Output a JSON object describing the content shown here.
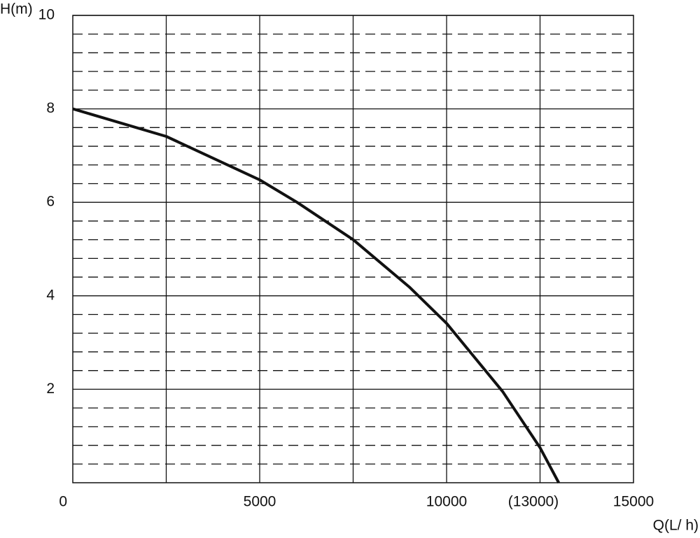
{
  "chart_data": {
    "type": "line",
    "ylabel": "H(m)",
    "xlabel": "Q(L/ h)",
    "xlim": [
      0,
      15000
    ],
    "ylim": [
      0,
      10
    ],
    "xticks": [
      0,
      5000,
      10000,
      {
        "value": 13000,
        "label": "(13000)"
      },
      15000
    ],
    "yticks": [
      2,
      4,
      6,
      8,
      10
    ],
    "xgrid": [
      2500,
      5000,
      7500,
      10000,
      12500
    ],
    "yminor": [
      0.4,
      0.8,
      1.2,
      1.6,
      2.4,
      2.8,
      3.2,
      3.6,
      4.4,
      4.8,
      5.2,
      5.6,
      6.4,
      6.8,
      7.2,
      7.6,
      8.4,
      8.8,
      9.2,
      9.6
    ],
    "grid": true,
    "series": [
      {
        "color": "#111111",
        "x": [
          0,
          2500,
          5000,
          6000,
          7500,
          9000,
          10000,
          11500,
          12500,
          13000
        ],
        "values": [
          8,
          7.41,
          6.48,
          6.0,
          5.2,
          4.19,
          3.41,
          1.95,
          0.75,
          0
        ]
      }
    ]
  }
}
